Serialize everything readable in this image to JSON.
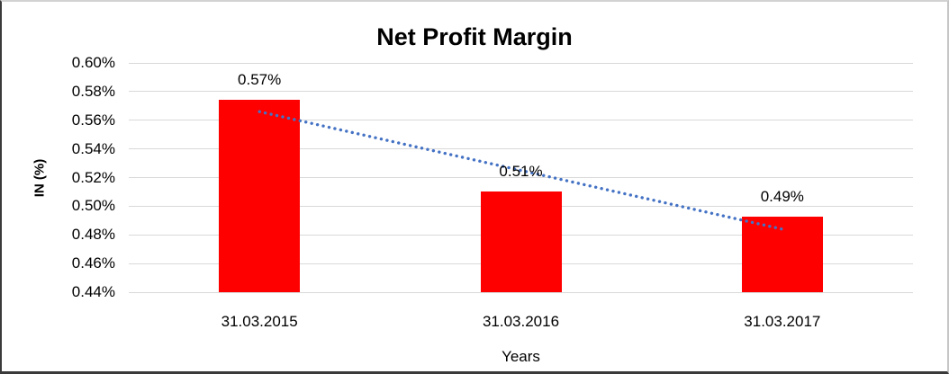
{
  "chart_data": {
    "type": "bar",
    "title": "Net Profit Margin",
    "xlabel": "Years",
    "ylabel": "IN (%)",
    "categories": [
      "31.03.2015",
      "31.03.2016",
      "31.03.2017"
    ],
    "values": [
      0.574,
      0.51,
      0.493
    ],
    "bar_labels": [
      "0.57%",
      "0.51%",
      "0.49%"
    ],
    "ylim": [
      0.44,
      0.6
    ],
    "ytick_step": 0.02,
    "ytick_labels": [
      "0.60%",
      "0.58%",
      "0.56%",
      "0.54%",
      "0.52%",
      "0.50%",
      "0.48%",
      "0.46%",
      "0.44%"
    ],
    "grid": true,
    "legend": "none",
    "bar_color": "#ff0000",
    "gridline_color": "#d9d9d9",
    "trendline": {
      "type": "linear",
      "style": "dotted",
      "color": "#4472c4",
      "start_value": 0.566,
      "end_value": 0.484
    }
  }
}
